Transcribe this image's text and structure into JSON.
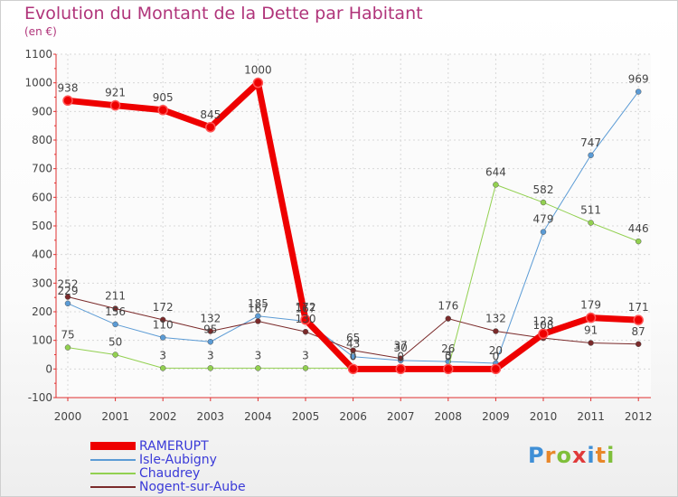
{
  "header": {
    "title": "Evolution du Montant de la Dette par Habitant",
    "subtitle": "(en €)"
  },
  "logo": {
    "text": "Proxiti",
    "colors": [
      "#3f8fd6",
      "#e8872a",
      "#7fbf3a",
      "#e03a3a",
      "#3f8fd6",
      "#e8872a",
      "#7fbf3a"
    ]
  },
  "chart_data": {
    "type": "line",
    "x": [
      "2000",
      "2001",
      "2002",
      "2003",
      "2004",
      "2005",
      "2006",
      "2007",
      "2008",
      "2009",
      "2010",
      "2011",
      "2012"
    ],
    "ylim": [
      -100,
      1100
    ],
    "yticks": [
      -100,
      0,
      100,
      200,
      300,
      400,
      500,
      600,
      700,
      800,
      900,
      1000,
      1100
    ],
    "grid": true,
    "legend_position": "bottom-left",
    "series": [
      {
        "name": "RAMERUPT",
        "color": "#ee0000",
        "width": 7,
        "values": [
          938,
          921,
          905,
          845,
          1000,
          172,
          0,
          0,
          0,
          0,
          123,
          179,
          171
        ],
        "labels": [
          "938",
          "921",
          "905",
          "845",
          "1000",
          "172",
          "0",
          "0",
          "0",
          "0",
          "123",
          "179",
          "171"
        ]
      },
      {
        "name": "Isle-Aubigny",
        "color": "#5b9bd5",
        "width": 1,
        "values": [
          229,
          156,
          110,
          95,
          185,
          167,
          43,
          30,
          26,
          20,
          479,
          747,
          969
        ],
        "labels": [
          "229",
          "156",
          "110",
          "95",
          "185",
          "167",
          "43",
          "30",
          "26",
          "20",
          "479",
          "747",
          "969"
        ]
      },
      {
        "name": "Chaudrey",
        "color": "#92d050",
        "width": 1,
        "values": [
          75,
          50,
          3,
          3,
          3,
          3,
          3,
          3,
          3,
          644,
          582,
          511,
          446
        ],
        "labels": [
          "75",
          "50",
          "3",
          "3",
          "3",
          "3",
          "",
          "",
          "3",
          "644",
          "582",
          "511",
          "446"
        ]
      },
      {
        "name": "Nogent-sur-Aube",
        "color": "#7a2a2a",
        "width": 1,
        "values": [
          252,
          211,
          172,
          132,
          167,
          130,
          65,
          37,
          176,
          132,
          108,
          91,
          87
        ],
        "labels": [
          "252",
          "211",
          "172",
          "132",
          "167",
          "130",
          "65",
          "37",
          "176",
          "132",
          "108",
          "91",
          "87"
        ]
      }
    ]
  }
}
